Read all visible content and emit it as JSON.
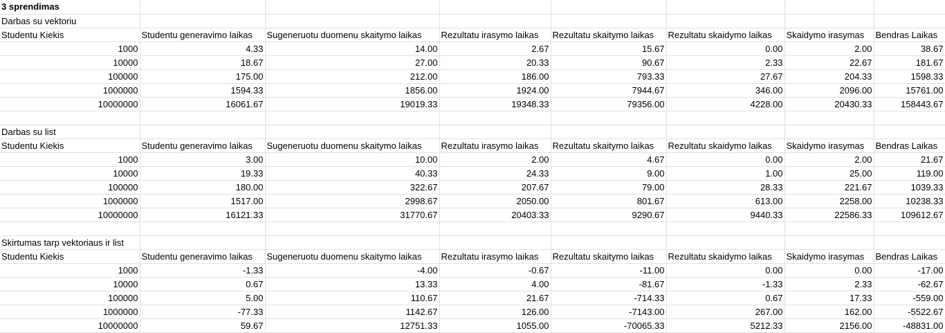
{
  "title": "3 sprendimas",
  "sections": [
    {
      "label": "Darbas su vektoriu",
      "headers": [
        "Studentu Kiekis",
        "Studentu generavimo laikas",
        "Sugeneruotu duomenu skaitymo laikas",
        "Rezultatu irasymo laikas",
        "Rezultatu skaitymo laikas",
        "Rezultatu skaidymo laikas",
        "Skaidymo irasymas",
        "Bendras Laikas"
      ],
      "rows": [
        [
          "1000",
          "4.33",
          "14.00",
          "2.67",
          "15.67",
          "0.00",
          "2.00",
          "38.67"
        ],
        [
          "10000",
          "18.67",
          "27.00",
          "20.33",
          "90.67",
          "2.33",
          "22.67",
          "181.67"
        ],
        [
          "100000",
          "175.00",
          "212.00",
          "186.00",
          "793.33",
          "27.67",
          "204.33",
          "1598.33"
        ],
        [
          "1000000",
          "1594.33",
          "1856.00",
          "1924.00",
          "7944.67",
          "346.00",
          "2096.00",
          "15761.00"
        ],
        [
          "10000000",
          "16061.67",
          "19019.33",
          "19348.33",
          "79356.00",
          "4228.00",
          "20430.33",
          "158443.67"
        ]
      ]
    },
    {
      "label": "Darbas su list",
      "headers": [
        "Studentu Kiekis",
        "Studentu generavimo laikas",
        "Sugeneruotu duomenu skaitymo laikas",
        "Rezultatu irasymo laikas",
        "Rezultatu skaitymo laikas",
        "Rezultatu skaidymo laikas",
        "Skaidymo irasymas",
        "Bendras Laikas"
      ],
      "rows": [
        [
          "1000",
          "3.00",
          "10.00",
          "2.00",
          "4.67",
          "0.00",
          "2.00",
          "21.67"
        ],
        [
          "10000",
          "19.33",
          "40.33",
          "24.33",
          "9.00",
          "1.00",
          "25.00",
          "119.00"
        ],
        [
          "100000",
          "180.00",
          "322.67",
          "207.67",
          "79.00",
          "28.33",
          "221.67",
          "1039.33"
        ],
        [
          "1000000",
          "1517.00",
          "2998.67",
          "2050.00",
          "801.67",
          "613.00",
          "2258.00",
          "10238.33"
        ],
        [
          "10000000",
          "16121.33",
          "31770.67",
          "20403.33",
          "9290.67",
          "9440.33",
          "22586.33",
          "109612.67"
        ]
      ]
    },
    {
      "label": "Skirtumas tarp vektoriaus ir list",
      "headers": [
        "Studentu Kiekis",
        "Studentu generavimo laikas",
        "Sugeneruotu duomenu skaitymo laikas",
        "Rezultatu irasymo laikas",
        "Rezultatu skaitymo laikas",
        "Rezultatu skaidymo laikas",
        "Skaidymo irasymas",
        "Bendras Laikas"
      ],
      "rows": [
        [
          "1000",
          "-1.33",
          "-4.00",
          "-0.67",
          "-11.00",
          "0.00",
          "0.00",
          "-17.00"
        ],
        [
          "10000",
          "0.67",
          "13.33",
          "4.00",
          "-81.67",
          "-1.33",
          "2.33",
          "-62.67"
        ],
        [
          "100000",
          "5.00",
          "110.67",
          "21.67",
          "-714.33",
          "0.67",
          "17.33",
          "-559.00"
        ],
        [
          "1000000",
          "-77.33",
          "1142.67",
          "126.00",
          "-7143.00",
          "267.00",
          "162.00",
          "-5522.67"
        ],
        [
          "10000000",
          "59.67",
          "12751.33",
          "1055.00",
          "-70065.33",
          "5212.33",
          "2156.00",
          "-48831.00"
        ]
      ]
    }
  ]
}
